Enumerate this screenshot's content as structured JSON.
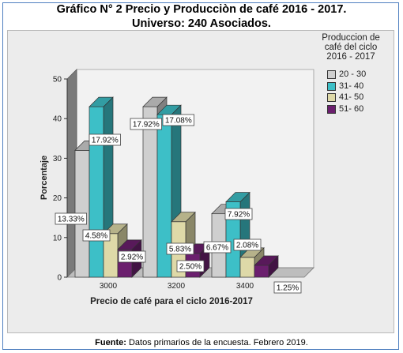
{
  "title_line1": "Gráfico N° 2 Precio y Producciòn de café 2016 - 2017.",
  "title_line2": "Universo: 240 Asociados.",
  "source_label": "Fuente:",
  "source_text": " Datos primarios de la encuesta. Febrero 2019.",
  "chart_data": {
    "type": "bar",
    "xlabel": "Precio de café para el ciclo 2016-2017",
    "ylabel": "Porcentaje",
    "ylim": [
      0,
      50
    ],
    "yticks": [
      0,
      10,
      20,
      30,
      40,
      50
    ],
    "categories": [
      "3000",
      "3200",
      "3400"
    ],
    "legend_title": "Produccion de café del ciclo 2016 - 2017",
    "legend_position": "right",
    "series": [
      {
        "name": "20 - 30",
        "color": "#cfcfcf",
        "values": [
          32,
          43,
          16
        ],
        "labels": [
          "13.33%",
          "17.92%",
          "6.67%"
        ]
      },
      {
        "name": "31- 40",
        "color": "#3dbfc7",
        "values": [
          43,
          41,
          19
        ],
        "labels": [
          "17.92%",
          "17.08%",
          "7.92%"
        ]
      },
      {
        "name": "41- 50",
        "color": "#ded9a8",
        "values": [
          11,
          14,
          5
        ],
        "labels": [
          "4.58%",
          "5.83%",
          "2.08%"
        ]
      },
      {
        "name": "51- 60",
        "color": "#6b1f6e",
        "values": [
          7,
          6,
          3
        ],
        "labels": [
          "2.92%",
          "2.50%",
          "1.25%"
        ]
      }
    ]
  }
}
